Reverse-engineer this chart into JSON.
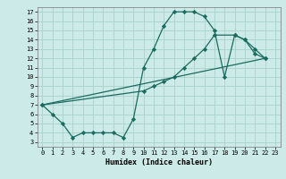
{
  "title": "",
  "xlabel": "Humidex (Indice chaleur)",
  "xlim": [
    -0.5,
    23.5
  ],
  "ylim": [
    2.5,
    17.5
  ],
  "xticks": [
    0,
    1,
    2,
    3,
    4,
    5,
    6,
    7,
    8,
    9,
    10,
    11,
    12,
    13,
    14,
    15,
    16,
    17,
    18,
    19,
    20,
    21,
    22,
    23
  ],
  "yticks": [
    3,
    4,
    5,
    6,
    7,
    8,
    9,
    10,
    11,
    12,
    13,
    14,
    15,
    16,
    17
  ],
  "bg_color": "#cceae8",
  "grid_color": "#aed4d0",
  "line_color": "#1a6b60",
  "line1_x": [
    0,
    1,
    2,
    3,
    4,
    5,
    6,
    7,
    8,
    9,
    10,
    11,
    12,
    13,
    14,
    15,
    16,
    17,
    18,
    19,
    20,
    21,
    22
  ],
  "line1_y": [
    7.0,
    6.0,
    5.0,
    3.5,
    4.0,
    4.0,
    4.0,
    4.0,
    3.5,
    5.5,
    11.0,
    13.0,
    15.5,
    17.0,
    17.0,
    17.0,
    16.5,
    15.0,
    10.0,
    14.5,
    14.0,
    12.5,
    12.0
  ],
  "line2_x": [
    0,
    10,
    11,
    12,
    13,
    14,
    15,
    16,
    17,
    19,
    20,
    21,
    22
  ],
  "line2_y": [
    7.0,
    8.5,
    9.0,
    9.5,
    10.0,
    11.0,
    12.0,
    13.0,
    14.5,
    14.5,
    14.0,
    13.0,
    12.0
  ],
  "line3_x": [
    0,
    22
  ],
  "line3_y": [
    7.0,
    12.0
  ],
  "xlabel_fontsize": 6,
  "tick_fontsize": 5
}
